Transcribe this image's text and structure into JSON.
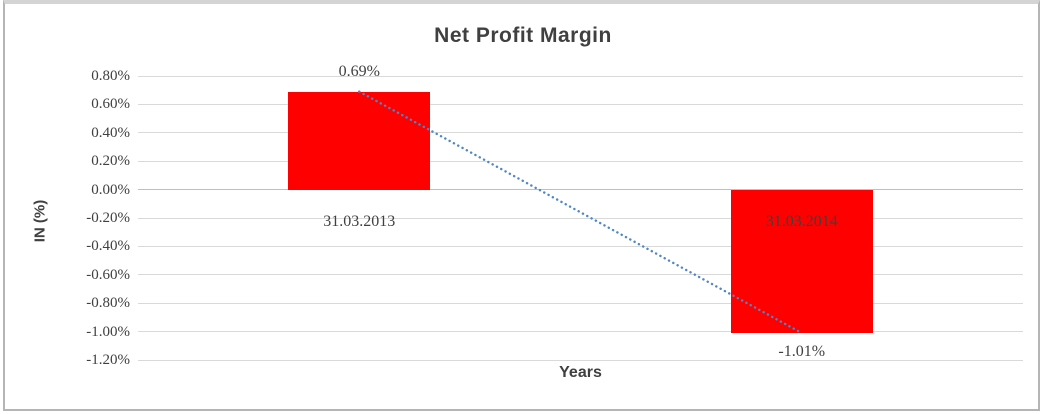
{
  "chart_data": {
    "type": "bar",
    "title": "Net Profit Margin",
    "xlabel": "Years",
    "ylabel": "IN (%)",
    "categories": [
      "31.03.2013",
      "31.03.2014"
    ],
    "values": [
      0.69,
      -1.01
    ],
    "data_labels": [
      "0.69%",
      "-1.01%"
    ],
    "legend": "none",
    "gridlines": "horizontal",
    "y_axis": {
      "min": -1.2,
      "max": 0.8,
      "step": 0.2,
      "ticks": [
        {
          "label": "0.80%",
          "value": 0.8
        },
        {
          "label": "0.60%",
          "value": 0.6
        },
        {
          "label": "0.40%",
          "value": 0.4
        },
        {
          "label": "0.20%",
          "value": 0.2
        },
        {
          "label": "0.00%",
          "value": 0.0
        },
        {
          "label": "-0.20%",
          "value": -0.2
        },
        {
          "label": "-0.40%",
          "value": -0.4
        },
        {
          "label": "-0.60%",
          "value": -0.6
        },
        {
          "label": "-0.80%",
          "value": -0.8
        },
        {
          "label": "-1.00%",
          "value": -1.0
        },
        {
          "label": "-1.20%",
          "value": -1.2
        }
      ]
    },
    "trendline": {
      "style": "dotted",
      "start_value": 0.69,
      "end_value": -1.01
    },
    "colors": {
      "bar": "#FF0000",
      "trendline": "#4E86C8",
      "gridline": "#D9D9D9",
      "axis_line": "#BFBFBF",
      "text": "#404040",
      "frame_border": "#B5B5B5"
    }
  }
}
